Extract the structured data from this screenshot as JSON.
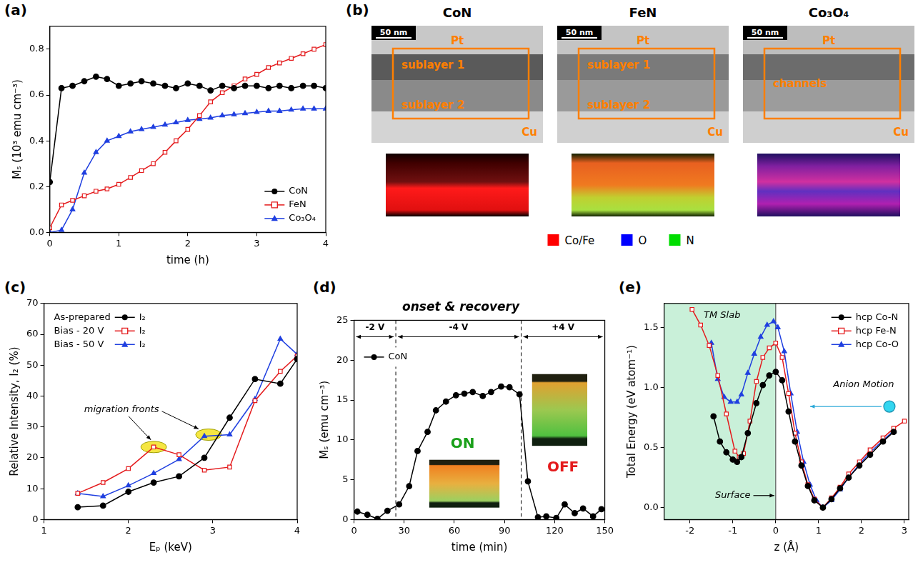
{
  "chart_data": [
    {
      "label": "(a)",
      "type": "line",
      "x_label": "time (h)",
      "y_label": "Mₛ (10³ emu cm⁻³)",
      "xlim": [
        0,
        4
      ],
      "xticks": [
        0,
        1,
        2,
        3,
        4
      ],
      "ylim": [
        0,
        0.9
      ],
      "yticks": [
        {
          "value": 0,
          "label": "0.0"
        },
        {
          "value": 0.2,
          "label": "0.2"
        },
        {
          "value": 0.4,
          "label": "0.4"
        },
        {
          "value": 0.6,
          "label": "0.6"
        },
        {
          "value": 0.8,
          "label": "0.8"
        }
      ],
      "grid": false,
      "legend": "lower right",
      "x": [
        0,
        0.17,
        0.33,
        0.5,
        0.67,
        0.83,
        1.0,
        1.17,
        1.33,
        1.5,
        1.67,
        1.83,
        2.0,
        2.17,
        2.33,
        2.5,
        2.67,
        2.83,
        3.0,
        3.17,
        3.33,
        3.5,
        3.67,
        3.83,
        4.0
      ],
      "series": [
        {
          "name": "CoN",
          "color": "#000000",
          "marker": "circle",
          "line_style": "solid",
          "values": [
            0.22,
            0.63,
            0.64,
            0.66,
            0.68,
            0.67,
            0.64,
            0.65,
            0.66,
            0.65,
            0.64,
            0.63,
            0.65,
            0.64,
            0.62,
            0.64,
            0.63,
            0.64,
            0.64,
            0.63,
            0.64,
            0.63,
            0.64,
            0.64,
            0.63
          ]
        },
        {
          "name": "FeN",
          "color": "#e41a1c",
          "marker": "open_square",
          "line_style": "solid",
          "values": [
            0.02,
            0.12,
            0.14,
            0.16,
            0.18,
            0.19,
            0.21,
            0.24,
            0.27,
            0.3,
            0.35,
            0.4,
            0.45,
            0.51,
            0.57,
            0.61,
            0.64,
            0.67,
            0.69,
            0.72,
            0.74,
            0.76,
            0.78,
            0.8,
            0.82
          ]
        },
        {
          "name": "Co₃O₄",
          "color": "#1f3fe0",
          "marker": "triangle",
          "line_style": "solid",
          "values": [
            0.0,
            0.01,
            0.1,
            0.26,
            0.35,
            0.4,
            0.42,
            0.44,
            0.45,
            0.46,
            0.47,
            0.48,
            0.49,
            0.495,
            0.5,
            0.51,
            0.515,
            0.52,
            0.525,
            0.53,
            0.53,
            0.535,
            0.54,
            0.54,
            0.54
          ]
        }
      ]
    },
    {
      "label": "(c)",
      "type": "line",
      "x_label": "Eₚ (keV)",
      "y_label": "Relative Intensity, I₂ (%)",
      "xlim": [
        1,
        4
      ],
      "xticks": [
        1,
        2,
        3,
        4
      ],
      "ylim": [
        0,
        70
      ],
      "yticks": [
        0,
        10,
        20,
        30,
        40,
        50,
        60,
        70
      ],
      "grid": false,
      "legend": "upper left",
      "x": [
        1.4,
        1.7,
        2.0,
        2.3,
        2.6,
        2.9,
        3.2,
        3.5,
        3.8,
        4.0
      ],
      "series": [
        {
          "name": "As-prepared",
          "legend_label": "I₂",
          "color": "#000000",
          "marker": "circle",
          "line_style": "solid",
          "values": [
            4,
            4.5,
            9,
            12,
            14,
            20,
            33,
            45.5,
            44,
            52
          ]
        },
        {
          "name": "Bias - 20 V",
          "legend_label": "I₂",
          "color": "#e41a1c",
          "marker": "open_square",
          "line_style": "solid",
          "values": [
            8.5,
            12,
            16.5,
            23.5,
            21,
            16,
            17,
            38.5,
            48,
            53
          ]
        },
        {
          "name": "Bias - 50 V",
          "legend_label": "I₂",
          "color": "#1f3fe0",
          "marker": "triangle",
          "line_style": "solid",
          "values": [
            8.5,
            7.5,
            11,
            15,
            19.5,
            27,
            27.5,
            39,
            58.5,
            53.5
          ]
        }
      ],
      "annotations": [
        {
          "text": "migration fronts",
          "highlights": [
            {
              "x": 2.3,
              "y": 23.5
            },
            {
              "x": 2.95,
              "y": 27.5
            }
          ]
        }
      ]
    },
    {
      "label": "(d)",
      "type": "line",
      "title": "onset & recovery",
      "x_label": "time (min)",
      "y_label": "Mₛ (emu cm⁻³)",
      "xlim": [
        0,
        150
      ],
      "xticks": [
        0,
        30,
        60,
        90,
        120,
        150
      ],
      "ylim": [
        0,
        25
      ],
      "yticks": [
        0,
        5,
        10,
        15,
        20,
        25
      ],
      "grid": false,
      "legend": "upper left",
      "x": [
        2,
        8,
        14,
        20,
        27,
        33,
        38,
        44,
        49,
        55,
        61,
        66,
        71,
        77,
        82,
        88,
        93,
        99,
        104,
        110,
        115,
        121,
        126,
        132,
        137,
        143,
        148
      ],
      "series": [
        {
          "name": "CoN",
          "color": "#000000",
          "marker": "circle",
          "line_style": "solid",
          "values": [
            1.0,
            0.6,
            0.1,
            1.1,
            1.9,
            4.2,
            8.6,
            11.0,
            13.7,
            14.8,
            15.6,
            15.8,
            16.0,
            15.5,
            16.0,
            16.7,
            16.6,
            15.7,
            4.8,
            0.3,
            0.4,
            0.2,
            1.9,
            0.8,
            1.4,
            0.4,
            1.3
          ]
        }
      ],
      "regions": [
        {
          "label": "-2 V",
          "from": 0,
          "to": 25
        },
        {
          "label": "-4 V",
          "from": 25,
          "to": 100
        },
        {
          "label": "+4 V",
          "from": 100,
          "to": 150
        }
      ],
      "annotations": [
        {
          "text": "ON",
          "x": 65,
          "y": 9.5,
          "color": "#1aa01a"
        },
        {
          "text": "OFF",
          "x": 125,
          "y": 6.5,
          "color": "#e41a1c"
        }
      ]
    },
    {
      "label": "(e)",
      "type": "line",
      "x_label": "z (Å)",
      "y_label": "Total Energy (eV atom⁻¹)",
      "xlim": [
        -2.6,
        3.1
      ],
      "xticks": [
        -2,
        -1,
        0,
        1,
        2,
        3
      ],
      "ylim": [
        -0.1,
        1.7
      ],
      "yticks": [
        {
          "value": 0,
          "label": "0.0"
        },
        {
          "value": 0.5,
          "label": "0.5"
        },
        {
          "value": 1,
          "label": "1.0"
        },
        {
          "value": 1.5,
          "label": "1.5"
        }
      ],
      "grid": false,
      "legend": "upper right",
      "series": [
        {
          "name": "hcp Co-N",
          "color": "#000000",
          "marker": "circle",
          "line_style": "solid",
          "x": [
            -1.45,
            -1.3,
            -1.15,
            -1.0,
            -0.9,
            -0.8,
            -0.65,
            -0.45,
            -0.3,
            -0.15,
            0,
            0.15,
            0.3,
            0.45,
            0.6,
            0.75,
            0.9,
            1.1,
            1.3,
            1.5,
            1.7,
            1.95,
            2.2,
            2.5,
            2.75
          ],
          "values": [
            0.76,
            0.55,
            0.46,
            0.4,
            0.38,
            0.42,
            0.62,
            0.87,
            1.02,
            1.1,
            1.13,
            1.06,
            0.8,
            0.55,
            0.35,
            0.18,
            0.06,
            0.0,
            0.07,
            0.16,
            0.25,
            0.35,
            0.44,
            0.55,
            0.63
          ]
        },
        {
          "name": "hcp Fe-N",
          "color": "#e41a1c",
          "marker": "open_square",
          "line_style": "solid",
          "x": [
            -1.95,
            -1.75,
            -1.55,
            -1.35,
            -1.15,
            -0.95,
            -0.85,
            -0.75,
            -0.6,
            -0.45,
            -0.3,
            -0.15,
            0,
            0.15,
            0.3,
            0.45,
            0.6,
            0.75,
            0.9,
            1.1,
            1.3,
            1.5,
            1.7,
            1.95,
            2.2,
            2.5,
            2.75,
            3.0
          ],
          "values": [
            1.65,
            1.52,
            1.35,
            1.1,
            0.78,
            0.47,
            0.42,
            0.45,
            0.72,
            1.05,
            1.25,
            1.33,
            1.37,
            1.25,
            0.95,
            0.62,
            0.38,
            0.19,
            0.07,
            0.0,
            0.08,
            0.17,
            0.28,
            0.38,
            0.48,
            0.58,
            0.66,
            0.72
          ]
        },
        {
          "name": "hcp Co-O",
          "color": "#1f3fe0",
          "marker": "triangle",
          "line_style": "solid",
          "x": [
            -1.5,
            -1.35,
            -1.2,
            -1.05,
            -0.9,
            -0.8,
            -0.65,
            -0.5,
            -0.35,
            -0.2,
            -0.05,
            0.05,
            0.2,
            0.35,
            0.5,
            0.65,
            0.8,
            0.95,
            1.1,
            1.3,
            1.5,
            1.7,
            1.95,
            2.2,
            2.5,
            2.75
          ],
          "values": [
            1.37,
            1.07,
            0.92,
            0.88,
            0.88,
            0.94,
            1.12,
            1.28,
            1.42,
            1.52,
            1.55,
            1.5,
            1.3,
            0.95,
            0.63,
            0.38,
            0.19,
            0.06,
            0.0,
            0.06,
            0.15,
            0.25,
            0.36,
            0.46,
            0.56,
            0.64
          ]
        }
      ],
      "shade": {
        "label": "TM Slab",
        "to": 0,
        "color": "#c9f0d9"
      },
      "annotations": [
        {
          "text": "TM Slab",
          "x": -1.25,
          "y": 1.6
        },
        {
          "text": "Surface",
          "x": -1.0,
          "y": 0.1
        },
        {
          "text": "Anion Motion",
          "x": 2.05,
          "y": 1.02
        }
      ]
    }
  ],
  "diagram": {
    "label": "(b)",
    "columns": [
      {
        "title": "CoN",
        "scale_bar": "50 nm",
        "labels": [
          "Pt",
          "sublayer 1",
          "sublayer 2",
          "Cu"
        ]
      },
      {
        "title": "FeN",
        "scale_bar": "50 nm",
        "labels": [
          "Pt",
          "sublayer 1",
          "sublayer 2",
          "Cu"
        ]
      },
      {
        "title": "Co₃O₄",
        "scale_bar": "50 nm",
        "labels": [
          "Pt",
          "channels",
          "Cu"
        ]
      }
    ],
    "color_key": [
      {
        "name": "Co/Fe",
        "color": "#ff0000"
      },
      {
        "name": "O",
        "color": "#0000ff"
      },
      {
        "name": "N",
        "color": "#00dd00"
      }
    ]
  }
}
